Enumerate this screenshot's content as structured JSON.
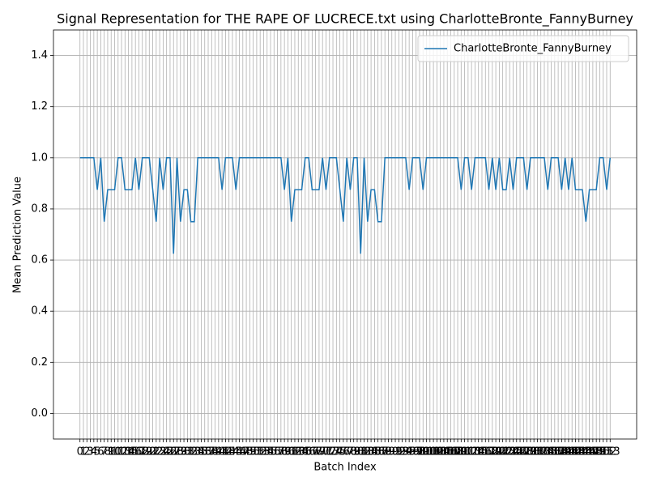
{
  "chart_data": {
    "type": "line",
    "title": "Signal Representation for THE RAPE OF LUCRECE.txt using CharlotteBronte_FannyBurney",
    "xlabel": "Batch Index",
    "ylabel": "Mean Prediction Value",
    "x": [
      0,
      1,
      2,
      3,
      4,
      5,
      6,
      7,
      8,
      9,
      10,
      11,
      12,
      13,
      14,
      15,
      16,
      17,
      18,
      19,
      20,
      21,
      22,
      23,
      24,
      25,
      26,
      27,
      28,
      29,
      30,
      31,
      32,
      33,
      34,
      35,
      36,
      37,
      38,
      39,
      40,
      41,
      42,
      43,
      44,
      45,
      46,
      47,
      48,
      49,
      50,
      51,
      52,
      53,
      54,
      55,
      56,
      57,
      58,
      59,
      60,
      61,
      62,
      63,
      64,
      65,
      66,
      67,
      68,
      69,
      70,
      71,
      72,
      73,
      74,
      75,
      76,
      77,
      78,
      79,
      80,
      81,
      82,
      83,
      84,
      85,
      86,
      87,
      88,
      89,
      90,
      91,
      92,
      93,
      94,
      95,
      96,
      97,
      98,
      99,
      100,
      101,
      102,
      103,
      104,
      105,
      106,
      107,
      108,
      109,
      110,
      111,
      112,
      113,
      114,
      115,
      116,
      117,
      118,
      119,
      120,
      121,
      122,
      123,
      124,
      125,
      126,
      127,
      128,
      129,
      130,
      131,
      132,
      133,
      134,
      135,
      136,
      137,
      138,
      139,
      140,
      141,
      142,
      143,
      144,
      145,
      146,
      147,
      148,
      149,
      150,
      151,
      152,
      153
    ],
    "series": [
      {
        "name": "CharlotteBronte_FannyBurney",
        "color": "#1f77b4",
        "values": [
          1,
          1,
          1,
          1,
          1,
          0.875,
          1,
          0.75,
          0.875,
          0.875,
          0.875,
          1,
          1,
          0.875,
          0.875,
          0.875,
          1,
          0.875,
          1,
          1,
          1,
          0.875,
          0.75,
          1,
          0.875,
          1,
          1,
          0.625,
          1,
          0.75,
          0.875,
          0.875,
          0.75,
          0.75,
          1,
          1,
          1,
          1,
          1,
          1,
          1,
          0.875,
          1,
          1,
          1,
          0.875,
          1,
          1,
          1,
          1,
          1,
          1,
          1,
          1,
          1,
          1,
          1,
          1,
          1,
          0.875,
          1,
          0.75,
          0.875,
          0.875,
          0.875,
          1,
          1,
          0.875,
          0.875,
          0.875,
          1,
          0.875,
          1,
          1,
          1,
          0.875,
          0.75,
          1,
          0.875,
          1,
          1,
          0.625,
          1,
          0.75,
          0.875,
          0.875,
          0.75,
          0.75,
          1,
          1,
          1,
          1,
          1,
          1,
          1,
          0.875,
          1,
          1,
          1,
          0.875,
          1,
          1,
          1,
          1,
          1,
          1,
          1,
          1,
          1,
          1,
          0.875,
          1,
          1,
          0.875,
          1,
          1,
          1,
          1,
          0.875,
          1,
          0.875,
          1,
          0.875,
          0.875,
          1,
          0.875,
          1,
          1,
          1,
          0.875,
          1,
          1,
          1,
          1,
          1,
          0.875,
          1,
          1,
          1,
          0.875,
          1,
          0.875,
          1,
          0.875,
          0.875,
          0.875,
          0.75,
          0.875,
          0.875,
          0.875,
          1,
          1,
          0.875,
          1
        ]
      }
    ],
    "xlim": [
      -7.65,
      160.65
    ],
    "ylim": [
      -0.1,
      1.5
    ],
    "xticks": [
      0,
      1,
      2,
      3,
      4,
      5,
      6,
      7,
      8,
      9,
      10,
      11,
      12,
      13,
      14,
      15,
      16,
      17,
      18,
      19,
      20,
      21,
      22,
      23,
      24,
      25,
      26,
      27,
      28,
      29,
      30,
      31,
      32,
      33,
      34,
      35,
      36,
      37,
      38,
      39,
      40,
      41,
      42,
      43,
      44,
      45,
      46,
      47,
      48,
      49,
      50,
      51,
      52,
      53,
      54,
      55,
      56,
      57,
      58,
      59,
      60,
      61,
      62,
      63,
      64,
      65,
      66,
      67,
      68,
      69,
      70,
      71,
      72,
      73,
      74,
      75,
      76,
      77,
      78,
      79,
      80,
      81,
      82,
      83,
      84,
      85,
      86,
      87,
      88,
      89,
      90,
      91,
      92,
      93,
      94,
      95,
      96,
      97,
      98,
      99,
      100,
      101,
      102,
      103,
      104,
      105,
      106,
      107,
      108,
      109,
      110,
      111,
      112,
      113,
      114,
      115,
      116,
      117,
      118,
      119,
      120,
      121,
      122,
      123,
      124,
      125,
      126,
      127,
      128,
      129,
      130,
      131,
      132,
      133,
      134,
      135,
      136,
      137,
      138,
      139,
      140,
      141,
      142,
      143,
      144,
      145,
      146,
      147,
      148,
      149,
      150,
      151,
      152,
      153
    ],
    "yticks": [
      {
        "value": 0,
        "label": "0.0"
      },
      {
        "value": 0.2,
        "label": "0.2"
      },
      {
        "value": 0.4,
        "label": "0.4"
      },
      {
        "value": 0.6,
        "label": "0.6"
      },
      {
        "value": 0.8,
        "label": "0.8"
      },
      {
        "value": 1,
        "label": "1.0"
      },
      {
        "value": 1.2,
        "label": "1.2"
      },
      {
        "value": 1.4,
        "label": "1.4"
      }
    ],
    "grid": true,
    "legend": "upper right"
  }
}
